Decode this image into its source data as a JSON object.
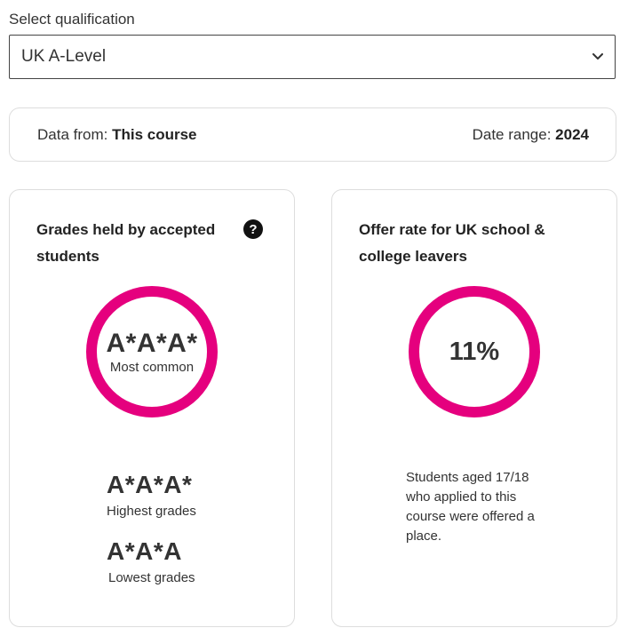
{
  "selector": {
    "label": "Select qualification",
    "value": "UK A-Level"
  },
  "info": {
    "data_from_label": "Data from:",
    "data_from_value": "This course",
    "date_range_label": "Date range:",
    "date_range_value": "2024"
  },
  "grades_card": {
    "title": "Grades held by accepted students",
    "help_icon": "?",
    "most_common_value": "A*A*A*",
    "most_common_label": "Most common",
    "highest_value": "A*A*A*",
    "highest_label": "Highest grades",
    "lowest_value": "A*A*A",
    "lowest_label": "Lowest grades"
  },
  "offer_card": {
    "title": "Offer rate for UK school & college leavers",
    "rate": "11%",
    "description": "Students aged 17/18 who applied to this course were offered a place."
  },
  "colors": {
    "accent": "#e5007e"
  }
}
